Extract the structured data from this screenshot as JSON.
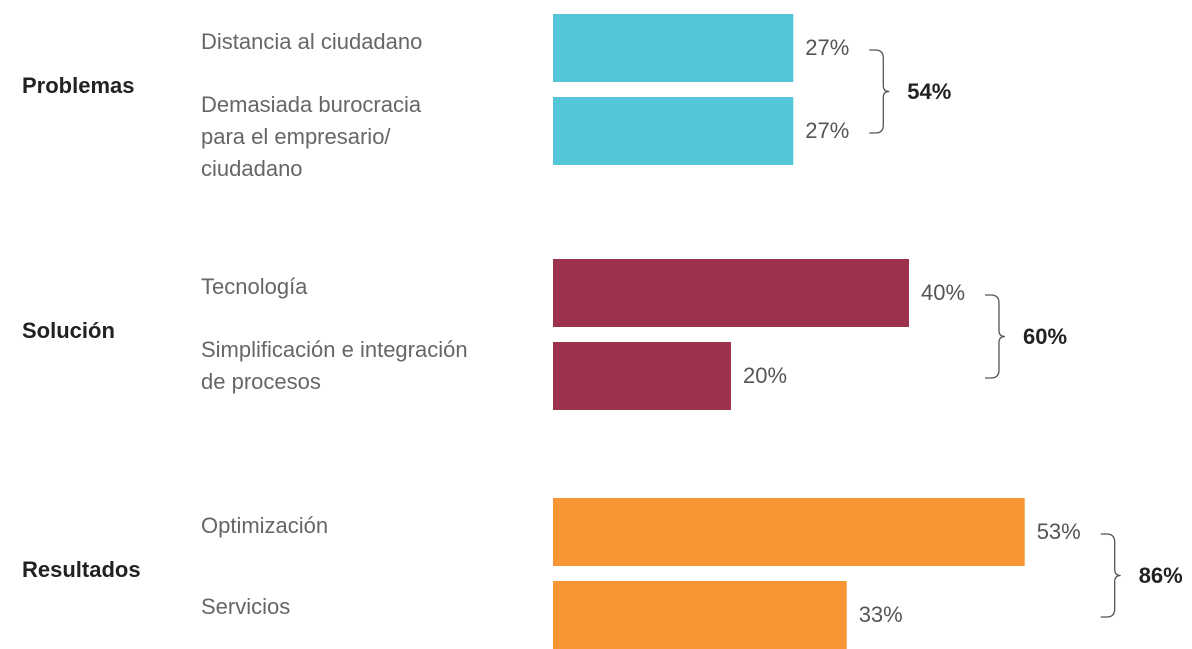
{
  "chart_data": {
    "type": "bar",
    "groups": [
      {
        "name": "Problemas",
        "color": "#53c6d8",
        "total": 54,
        "total_label": "54%",
        "categories": [
          "Distancia al ciudadano",
          "Demasiada burocracia\npara el empresario/\nciudadano"
        ],
        "values": [
          27,
          27
        ],
        "value_labels": [
          "27%",
          "27%"
        ]
      },
      {
        "name": "Solución",
        "color": "#9e324c",
        "total": 60,
        "total_label": "60%",
        "categories": [
          "Tecnología",
          "Simplificación e integración\nde procesos"
        ],
        "values": [
          40,
          20
        ],
        "value_labels": [
          "40%",
          "20%"
        ]
      },
      {
        "name": "Resultados",
        "color": "#f79433",
        "total": 86,
        "total_label": "86%",
        "categories": [
          "Optimización",
          "Servicios"
        ],
        "values": [
          53,
          33
        ],
        "value_labels": [
          "53%",
          "33%"
        ]
      }
    ]
  }
}
